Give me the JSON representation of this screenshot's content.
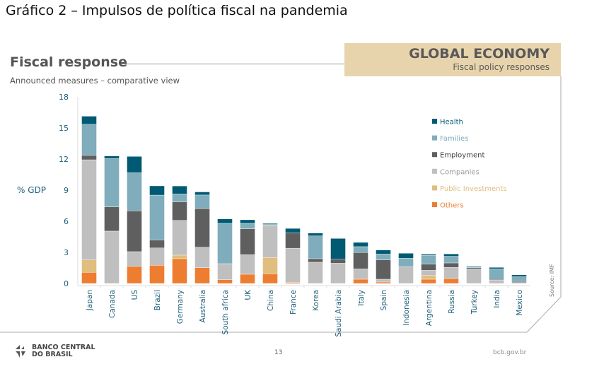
{
  "document_title": "Gráfico 2 – Impulsos de política fiscal na pandemia",
  "slide": {
    "title": "Fiscal response",
    "subtitle": "Announced measures – comparative view",
    "banner_title": "GLOBAL ECONOMY",
    "banner_subtitle": "Fiscal policy responses",
    "source": "Source: IMF",
    "footer_logo_line1": "BANCO CENTRAL",
    "footer_logo_line2": "DO BRASIL",
    "page_number": "13",
    "site": "bcb.gov.br"
  },
  "chart_data": {
    "type": "bar",
    "stacked": true,
    "title": "Fiscal response",
    "ylabel": "% GDP",
    "xlabel": "",
    "ylim": [
      0,
      18
    ],
    "yticks": [
      "0",
      "3",
      "6",
      "9",
      "12",
      "15",
      "18"
    ],
    "legend_position": "right",
    "categories": [
      "Japan",
      "Canada",
      "US",
      "Brazil",
      "Germany",
      "Australia",
      "South africa",
      "UK",
      "China",
      "France",
      "Korea",
      "Saudi Arabia",
      "Italy",
      "Spain",
      "Indonesia",
      "Argentina",
      "Russia",
      "Turkey",
      "India",
      "Mexico"
    ],
    "series": [
      {
        "name": "Others",
        "color": "#ed7d31",
        "values": [
          1.07,
          0,
          1.66,
          1.75,
          2.39,
          1.52,
          0.36,
          0.89,
          0.93,
          0.1,
          0,
          0,
          0.41,
          0.14,
          0,
          0.41,
          0.48,
          0,
          0,
          0
        ]
      },
      {
        "name": "Public Investments",
        "color": "#dfbe7e",
        "values": [
          1.2,
          0,
          0,
          0,
          0.34,
          0,
          0,
          0,
          1.57,
          0,
          0,
          0,
          0,
          0,
          0,
          0.36,
          0,
          0,
          0,
          0
        ]
      },
      {
        "name": "Companies",
        "color": "#bfbfbf",
        "values": [
          9.66,
          5.05,
          1.41,
          1.68,
          3.36,
          1.98,
          1.55,
          1.89,
          3.09,
          3.3,
          2.05,
          1.95,
          1.0,
          0.27,
          1.61,
          0.5,
          1.07,
          1.41,
          0.32,
          0.09
        ]
      },
      {
        "name": "Employment",
        "color": "#5f5f5f",
        "values": [
          0.43,
          2.34,
          3.93,
          0.77,
          1.77,
          3.73,
          0,
          2.5,
          0.05,
          1.48,
          0.34,
          0.39,
          1.57,
          1.86,
          0,
          0.59,
          0.43,
          0.11,
          0.07,
          0.11
        ]
      },
      {
        "name": "Families",
        "color": "#7fadbb",
        "values": [
          3.0,
          4.66,
          3.68,
          4.32,
          0.77,
          1.3,
          3.89,
          0.52,
          0.05,
          0,
          2.2,
          0,
          0.57,
          0.57,
          0.82,
          0.86,
          0.64,
          0.16,
          1.02,
          0.45
        ]
      },
      {
        "name": "Health",
        "color": "#005a73",
        "values": [
          0.77,
          0.25,
          1.57,
          0.89,
          0.77,
          0.3,
          0.43,
          0.34,
          0.1,
          0.43,
          0.27,
          2.0,
          0.41,
          0.39,
          0.48,
          0.11,
          0.23,
          0,
          0.14,
          0.18
        ]
      }
    ],
    "legend_order": [
      "Health",
      "Families",
      "Employment",
      "Companies",
      "Public Investments",
      "Others"
    ]
  }
}
